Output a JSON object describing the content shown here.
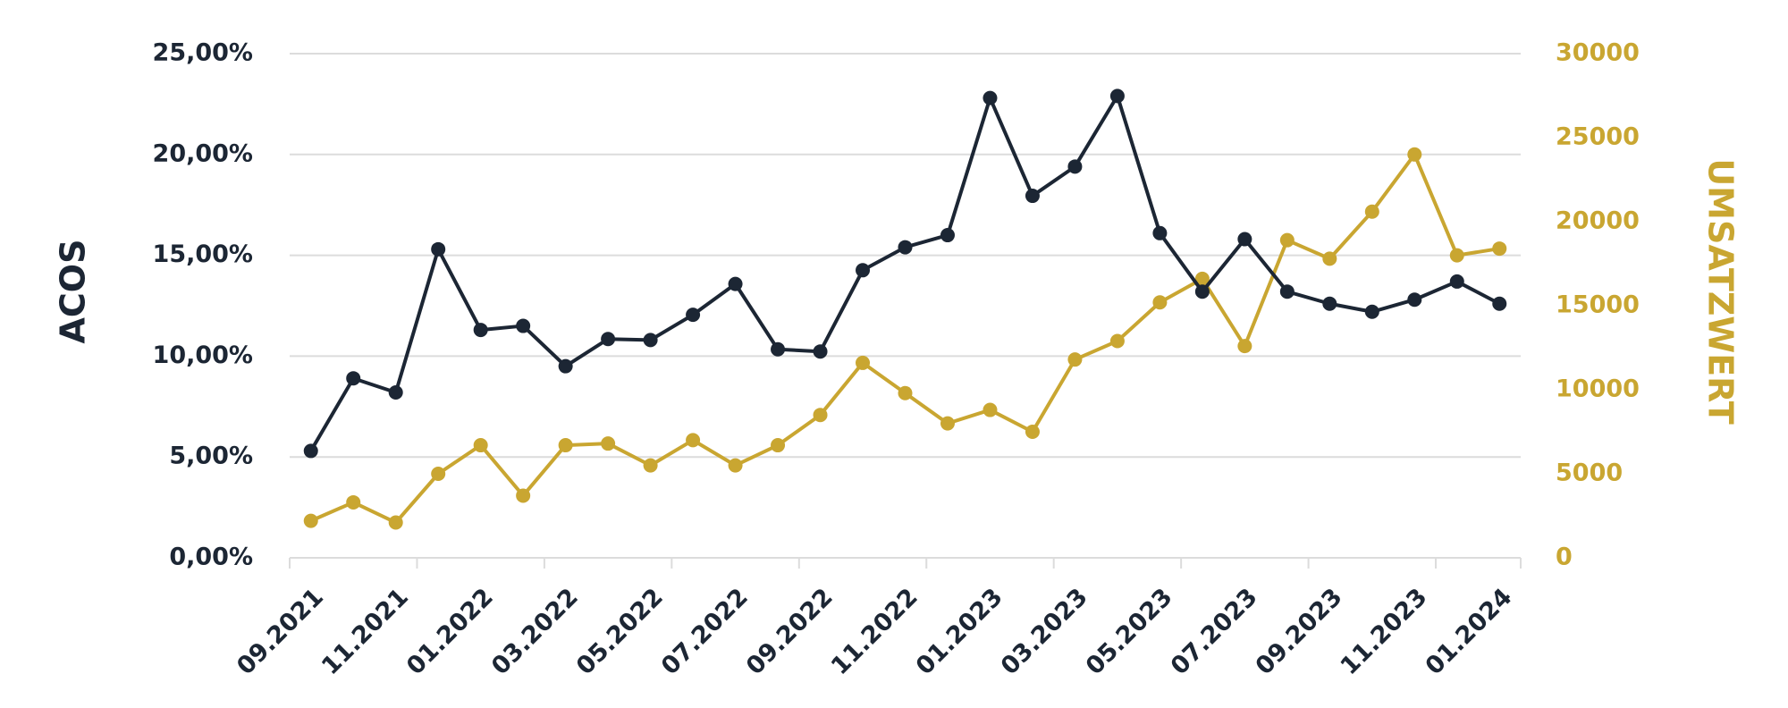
{
  "chart_data": {
    "type": "line",
    "y_label": "ACOS",
    "y2_label": "UMSATZWERT",
    "categories": [
      "09.2021",
      null,
      "11.2021",
      null,
      "01.2022",
      null,
      "03.2022",
      null,
      "05.2022",
      null,
      "07.2022",
      null,
      "09.2022",
      null,
      "11.2022",
      null,
      "01.2023",
      null,
      "03.2023",
      null,
      "05.2023",
      null,
      "07.2023",
      null,
      "09.2023",
      null,
      "11.2023",
      null,
      "01.2024"
    ],
    "series": [
      {
        "color": "#1c2634",
        "axis": "y",
        "values": [
          5.3,
          8.9,
          8.2,
          15.3,
          11.3,
          11.5,
          9.5,
          10.85,
          10.8,
          12.05,
          13.58,
          10.34,
          10.23,
          14.26,
          15.4,
          16.0,
          22.8,
          17.95,
          19.4,
          22.9,
          16.1,
          13.2,
          15.8,
          13.2,
          12.6,
          12.2,
          12.8,
          13.7,
          12.6
        ]
      },
      {
        "color": "#c9a631",
        "axis": "y2",
        "values": [
          2200,
          3300,
          2100,
          5000,
          6700,
          3700,
          6700,
          6800,
          5500,
          7000,
          5500,
          6700,
          8500,
          11600,
          9800,
          8000,
          8800,
          7500,
          11800,
          12900,
          15200,
          16600,
          12600,
          18900,
          17800,
          20600,
          24000,
          18000,
          18400
        ]
      }
    ],
    "ylim": [
      0,
      25
    ],
    "yticks": [
      {
        "value": 0,
        "label": "0,00%"
      },
      {
        "value": 5,
        "label": "5,00%"
      },
      {
        "value": 10,
        "label": "10,00%"
      },
      {
        "value": 15,
        "label": "15,00%"
      },
      {
        "value": 20,
        "label": "20,00%"
      },
      {
        "value": 25,
        "label": "25,00%"
      }
    ],
    "y2lim": [
      0,
      30000
    ],
    "y2ticks": [
      0,
      5000,
      10000,
      15000,
      20000,
      25000,
      30000
    ],
    "grid": true
  }
}
